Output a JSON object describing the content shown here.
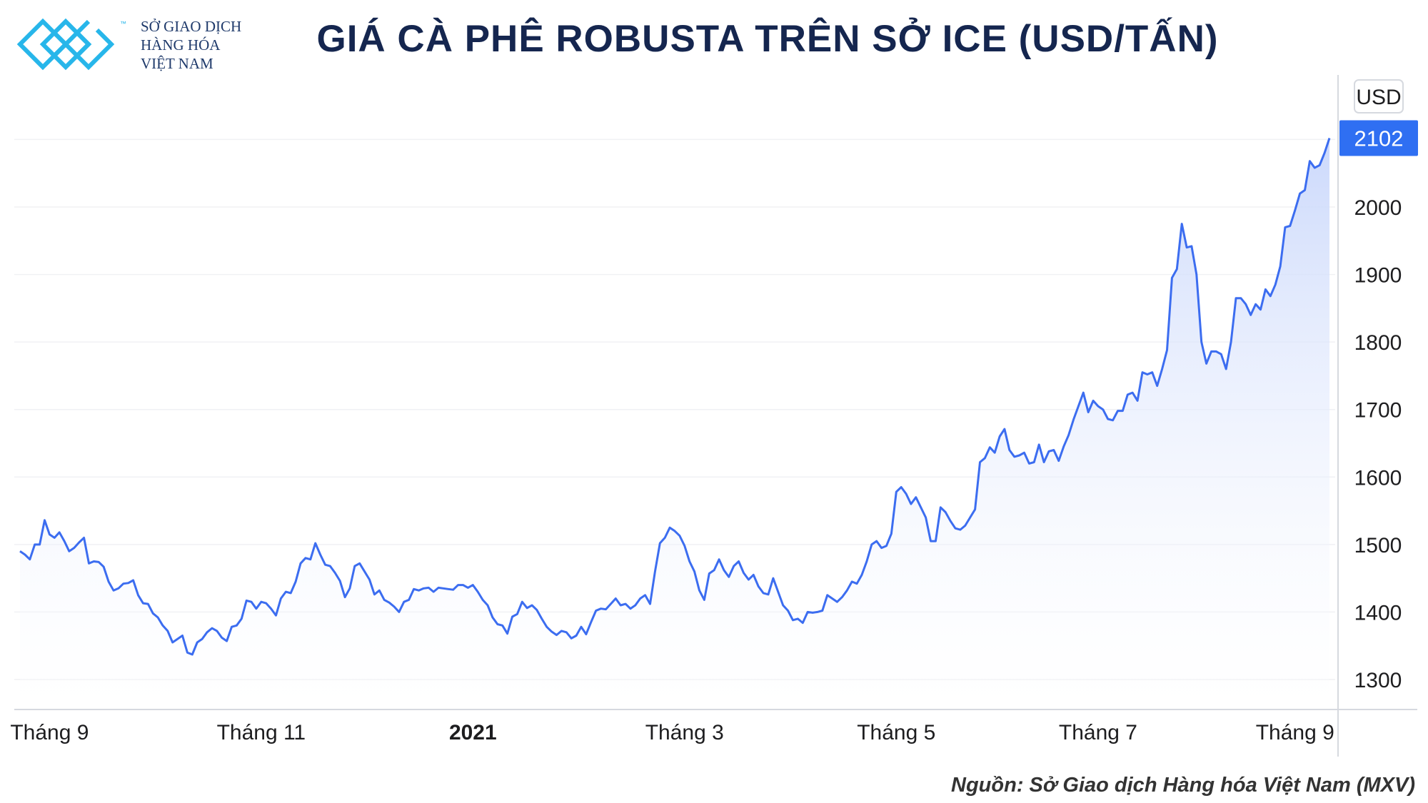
{
  "logo": {
    "lines": [
      "SỞ GIAO DỊCH",
      "HÀNG HÓA",
      "VIỆT NAM"
    ],
    "tm": "™"
  },
  "title": "GIÁ CÀ PHÊ ROBUSTA TRÊN SỞ ICE (USD/TẤN)",
  "source": "Nguồn: Sở Giao dịch Hàng hóa Việt Nam (MXV)",
  "colors": {
    "line": "#3c6df0",
    "area_top": "#c9d7fb",
    "area_bottom": "#ffffff",
    "badge": "#2f6ff2",
    "title": "#15264f",
    "grid": "#f0f1f4"
  },
  "chart_data": {
    "type": "area",
    "title": "",
    "xlabel": "",
    "ylabel": "USD",
    "currency_label": "USD",
    "last_value_label": "2102",
    "ylim": [
      1260,
      2160
    ],
    "y_ticks": [
      1300,
      1400,
      1500,
      1600,
      1700,
      1800,
      1900,
      2000
    ],
    "x_ticks": [
      {
        "label": "Tháng 9",
        "index": 6,
        "bold": false
      },
      {
        "label": "Tháng 11",
        "index": 49,
        "bold": false
      },
      {
        "label": "2021",
        "index": 92,
        "bold": true
      },
      {
        "label": "Tháng 3",
        "index": 135,
        "bold": false
      },
      {
        "label": "Tháng 5",
        "index": 178,
        "bold": false
      },
      {
        "label": "Tháng 7",
        "index": 219,
        "bold": false
      },
      {
        "label": "Tháng 9",
        "index": 259,
        "bold": false
      }
    ],
    "grid": true,
    "series": [
      {
        "values": [
          1490,
          1485,
          1478,
          1500,
          1500,
          1536,
          1515,
          1510,
          1518,
          1505,
          1490,
          1495,
          1503,
          1510,
          1472,
          1475,
          1474,
          1467,
          1445,
          1432,
          1435,
          1442,
          1443,
          1447,
          1425,
          1413,
          1412,
          1398,
          1392,
          1380,
          1372,
          1355,
          1360,
          1365,
          1340,
          1337,
          1355,
          1360,
          1370,
          1376,
          1372,
          1362,
          1357,
          1378,
          1380,
          1390,
          1417,
          1415,
          1405,
          1415,
          1413,
          1405,
          1395,
          1420,
          1430,
          1428,
          1445,
          1472,
          1480,
          1478,
          1502,
          1485,
          1470,
          1468,
          1458,
          1446,
          1422,
          1435,
          1468,
          1472,
          1460,
          1448,
          1426,
          1432,
          1418,
          1414,
          1408,
          1400,
          1415,
          1418,
          1434,
          1432,
          1435,
          1436,
          1430,
          1436,
          1435,
          1434,
          1433,
          1440,
          1440,
          1436,
          1440,
          1430,
          1418,
          1410,
          1392,
          1382,
          1380,
          1368,
          1393,
          1397,
          1415,
          1406,
          1410,
          1403,
          1390,
          1378,
          1371,
          1366,
          1372,
          1370,
          1361,
          1365,
          1378,
          1367,
          1385,
          1402,
          1405,
          1404,
          1412,
          1420,
          1410,
          1412,
          1405,
          1410,
          1420,
          1425,
          1412,
          1460,
          1502,
          1510,
          1525,
          1520,
          1513,
          1498,
          1475,
          1460,
          1432,
          1418,
          1457,
          1462,
          1478,
          1462,
          1452,
          1468,
          1475,
          1458,
          1448,
          1455,
          1438,
          1428,
          1426,
          1450,
          1430,
          1410,
          1402,
          1388,
          1390,
          1384,
          1400,
          1399,
          1400,
          1402,
          1425,
          1420,
          1415,
          1422,
          1432,
          1445,
          1442,
          1455,
          1475,
          1500,
          1505,
          1495,
          1498,
          1516,
          1578,
          1585,
          1575,
          1560,
          1570,
          1555,
          1540,
          1505,
          1505,
          1555,
          1548,
          1535,
          1524,
          1522,
          1528,
          1540,
          1552,
          1622,
          1628,
          1644,
          1636,
          1660,
          1671,
          1640,
          1630,
          1632,
          1636,
          1620,
          1622,
          1648,
          1622,
          1638,
          1640,
          1624,
          1645,
          1662,
          1685,
          1705,
          1725,
          1696,
          1713,
          1705,
          1700,
          1686,
          1684,
          1698,
          1698,
          1722,
          1725,
          1713,
          1755,
          1752,
          1755,
          1735,
          1760,
          1788,
          1895,
          1908,
          1975,
          1940,
          1942,
          1900,
          1800,
          1768,
          1786,
          1786,
          1782,
          1760,
          1800,
          1865,
          1865,
          1856,
          1840,
          1856,
          1848,
          1878,
          1868,
          1885,
          1912,
          1970,
          1972,
          1995,
          2020,
          2025,
          2068,
          2058,
          2062,
          2080,
          2102
        ]
      }
    ]
  }
}
